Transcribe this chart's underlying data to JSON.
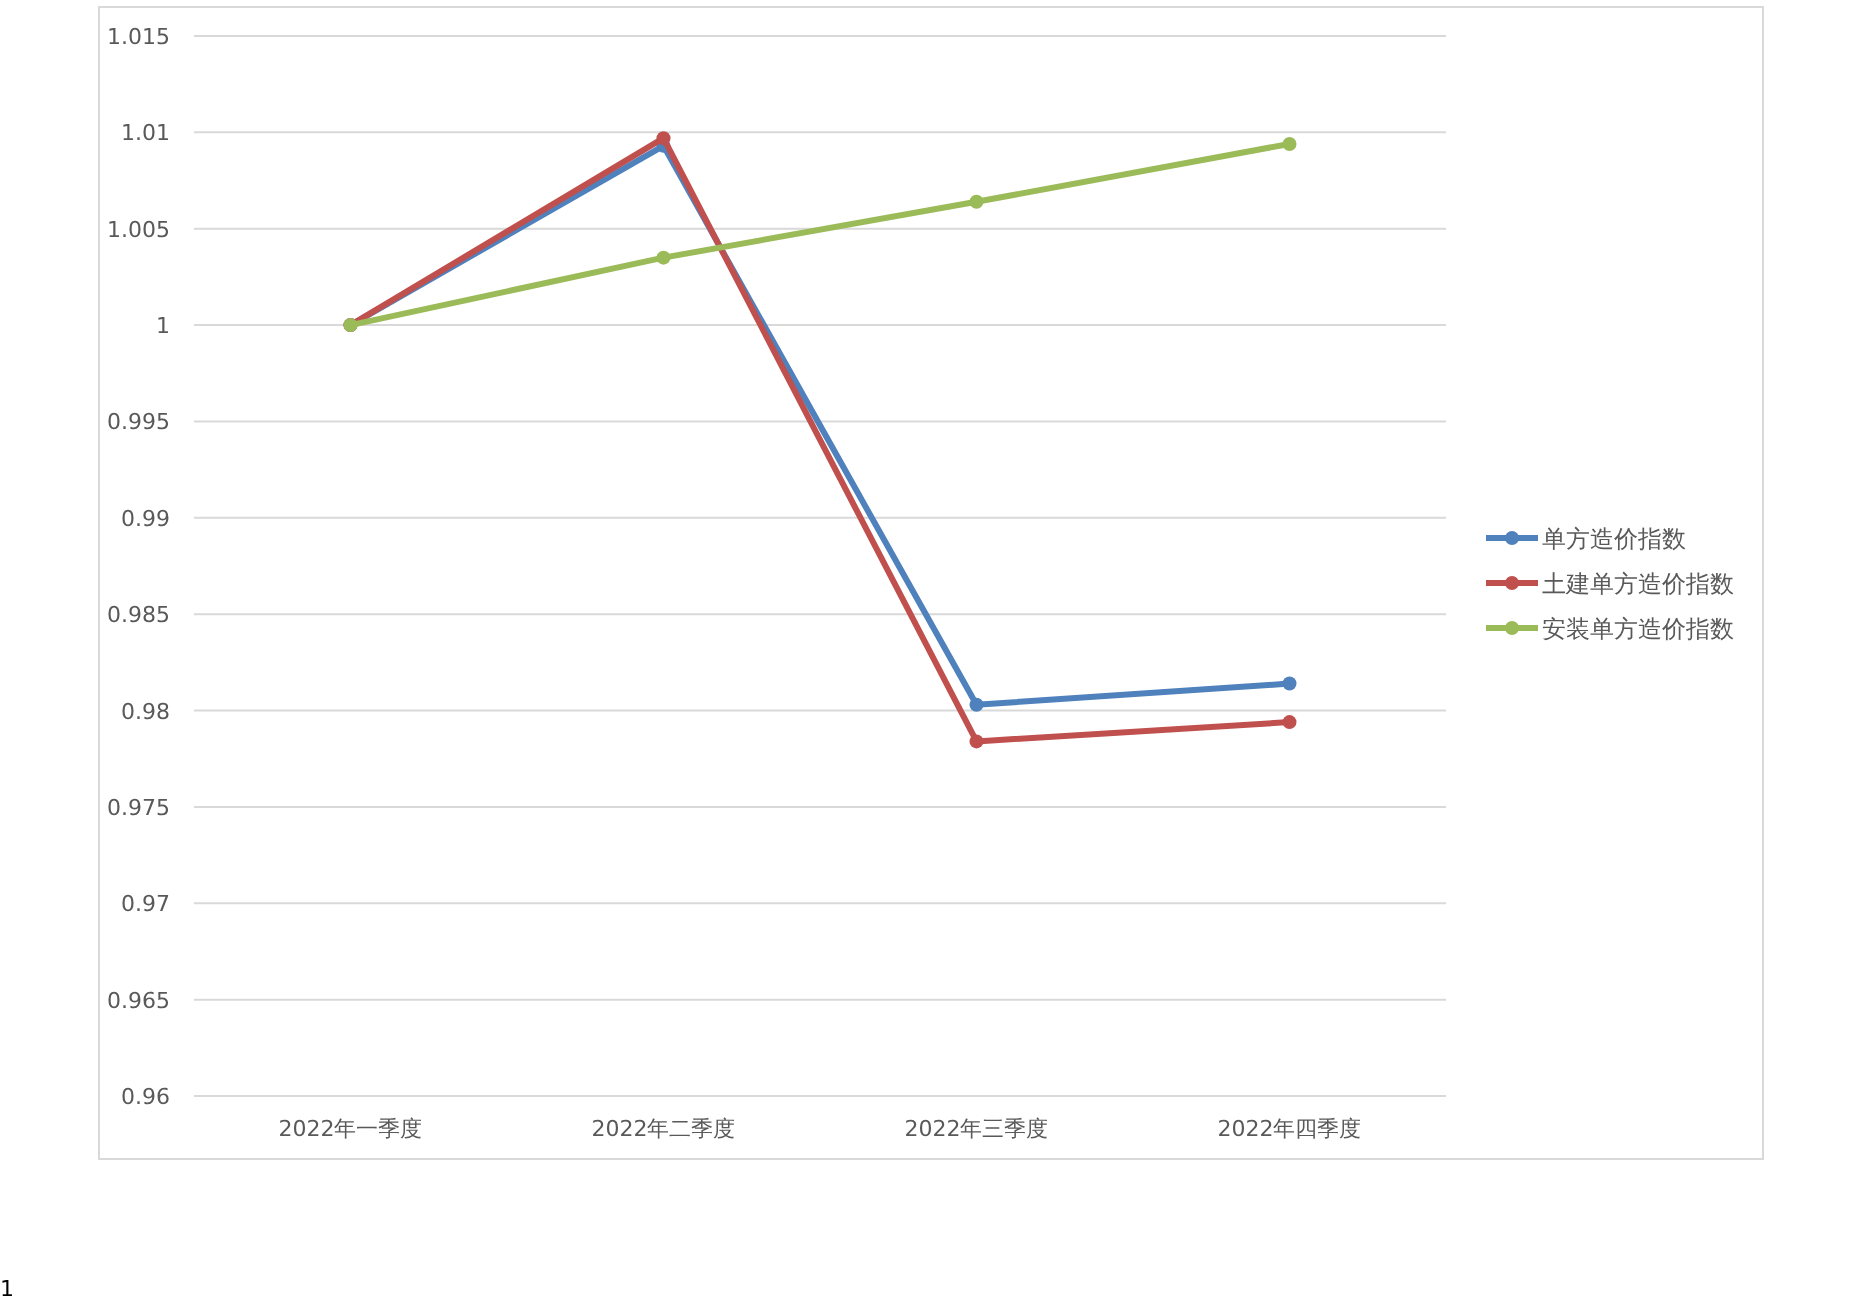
{
  "chart_data": {
    "type": "line",
    "categories": [
      "2022年一季度",
      "2022年二季度",
      "2022年三季度",
      "2022年四季度"
    ],
    "series": [
      {
        "name": "单方造价指数",
        "color": "#4f81bd",
        "values": [
          1.0,
          1.0093,
          0.9803,
          0.9814
        ]
      },
      {
        "name": "土建单方造价指数",
        "color": "#c0504d",
        "values": [
          1.0,
          1.0097,
          0.9784,
          0.9794
        ]
      },
      {
        "name": "安装单方造价指数",
        "color": "#9bbb59",
        "values": [
          1.0,
          1.0035,
          1.0064,
          1.0094
        ]
      }
    ],
    "ylim": [
      0.96,
      1.015
    ],
    "yticks": [
      0.96,
      0.965,
      0.97,
      0.975,
      0.98,
      0.985,
      0.99,
      0.995,
      1,
      1.005,
      1.01,
      1.015
    ],
    "grid": "y",
    "legend": "right",
    "marker": "circle",
    "line_style": "solid",
    "annotations": [
      "1"
    ]
  }
}
